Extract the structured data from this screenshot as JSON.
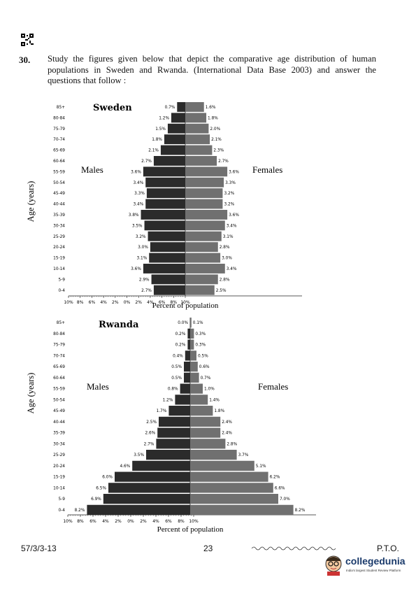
{
  "question": {
    "number": "30.",
    "text": "Study the figures given below that depict the comparative age distribution of human populations in Sweden and Rwanda. (International Data Base 2003) and answer the questions that follow :"
  },
  "footer": {
    "code": "57/3/3-13",
    "page": "23",
    "pto": "P.T.O."
  },
  "logo": {
    "name": "collegedunia",
    "tagline": "India's largest Student Review Platform"
  },
  "chart_data": [
    {
      "type": "bar",
      "title": "Sweden",
      "ylabel": "Age (years)",
      "xlabel": "Percent of population",
      "left_label": "Males",
      "right_label": "Females",
      "orientation": "population-pyramid",
      "categories": [
        "85+",
        "80-84",
        "75-79",
        "70-74",
        "65-69",
        "60-64",
        "55-59",
        "50-54",
        "45-49",
        "40-44",
        "35-39",
        "30-34",
        "25-29",
        "20-24",
        "15-19",
        "10-14",
        "5-9",
        "0-4"
      ],
      "xticks": [
        "10%",
        "8%",
        "6%",
        "4%",
        "2%",
        "0%",
        "2%",
        "4%",
        "6%",
        "8%",
        "10%"
      ],
      "series": [
        {
          "name": "Males",
          "color": "#2b2b2b",
          "values": [
            0.7,
            1.2,
            1.5,
            1.8,
            2.1,
            2.7,
            3.6,
            3.4,
            3.3,
            3.4,
            3.8,
            3.5,
            3.2,
            3.0,
            3.1,
            3.6,
            2.9,
            2.7
          ],
          "labels": [
            "0.7%",
            "1.2%",
            "1.5%",
            "1.8%",
            "2.1%",
            "2.7%",
            "3.6%",
            "3.4%",
            "3.3%",
            "3.4%",
            "3.8%",
            "3.5%",
            "3.2%",
            "3.0%",
            "3.1%",
            "3.6%",
            "2.9%",
            "2.7%"
          ]
        },
        {
          "name": "Females",
          "color": "#707070",
          "values": [
            1.6,
            1.8,
            2.0,
            2.1,
            2.3,
            2.7,
            3.6,
            3.3,
            3.2,
            3.2,
            3.6,
            3.4,
            3.1,
            2.8,
            3.0,
            3.4,
            2.8,
            2.5
          ],
          "labels": [
            "1.6%",
            "1.8%",
            "2.0%",
            "2.1%",
            "2.3%",
            "2.7%",
            "3.6%",
            "3.3%",
            "3.2%",
            "3.2%",
            "3.6%",
            "3.4%",
            "3.1%",
            "2.8%",
            "3.0%",
            "3.4%",
            "2.8%",
            "2.5%"
          ]
        }
      ]
    },
    {
      "type": "bar",
      "title": "Rwanda",
      "ylabel": "Age (years)",
      "xlabel": "Percent of population",
      "left_label": "Males",
      "right_label": "Females",
      "orientation": "population-pyramid",
      "categories": [
        "85+",
        "80-84",
        "75-79",
        "70-74",
        "65-69",
        "60-64",
        "55-59",
        "50-54",
        "45-49",
        "40-44",
        "35-39",
        "30-34",
        "25-29",
        "20-24",
        "15-19",
        "10-14",
        "5-9",
        "0-4"
      ],
      "xticks": [
        "10%",
        "8%",
        "6%",
        "4%",
        "2%",
        "0%",
        "2%",
        "4%",
        "6%",
        "8%",
        "10%"
      ],
      "series": [
        {
          "name": "Males",
          "color": "#2b2b2b",
          "values": [
            0.0,
            0.2,
            0.2,
            0.4,
            0.5,
            0.5,
            0.8,
            1.2,
            1.7,
            2.5,
            2.6,
            2.7,
            3.5,
            4.6,
            6.0,
            6.5,
            6.9,
            8.2
          ],
          "labels": [
            "0.0%",
            "0.2%",
            "0.2%",
            "0.4%",
            "0.5%",
            "0.5%",
            "0.8%",
            "1.2%",
            "1.7%",
            "2.5%",
            "2.6%",
            "2.7%",
            "3.5%",
            "4.6%",
            "6.0%",
            "6.5%",
            "6.9%",
            "8.2%"
          ]
        },
        {
          "name": "Females",
          "color": "#707070",
          "values": [
            0.1,
            0.3,
            0.3,
            0.5,
            0.6,
            0.7,
            1.0,
            1.4,
            1.8,
            2.4,
            2.4,
            2.8,
            3.7,
            5.1,
            6.2,
            6.6,
            7.0,
            8.2
          ],
          "labels": [
            "0.1%",
            "0.3%",
            "0.3%",
            "0.5%",
            "0.6%",
            "0.7%",
            "1.0%",
            "1.4%",
            "1.8%",
            "2.4%",
            "2.4%",
            "2.8%",
            "3.7%",
            "5.1%",
            "6.2%",
            "6.6%",
            "7.0%",
            "8.2%"
          ]
        }
      ]
    }
  ]
}
